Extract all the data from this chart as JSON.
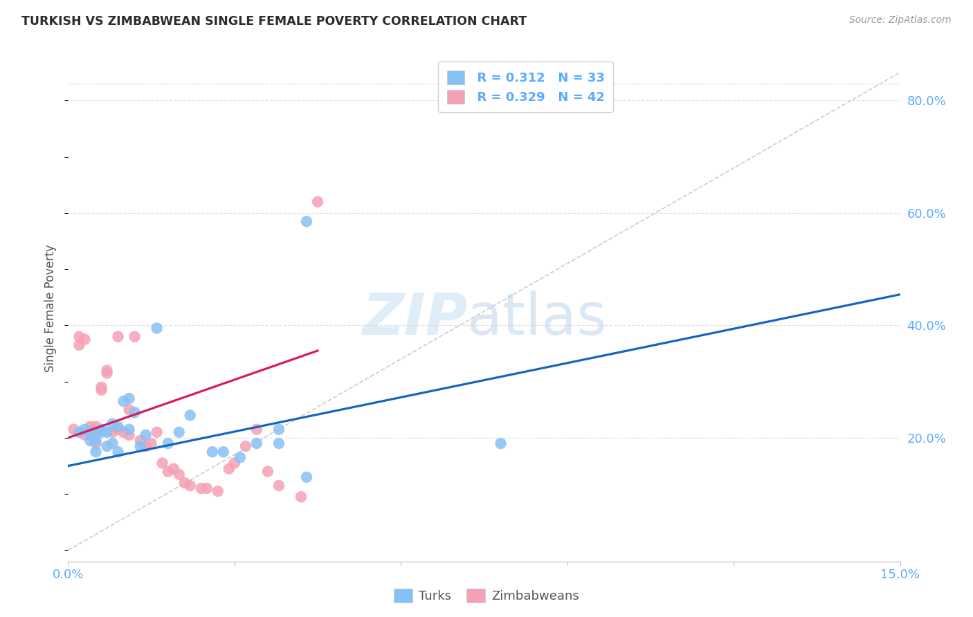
{
  "title": "TURKISH VS ZIMBABWEAN SINGLE FEMALE POVERTY CORRELATION CHART",
  "source": "Source: ZipAtlas.com",
  "ylabel": "Single Female Poverty",
  "xlim": [
    0.0,
    0.15
  ],
  "ylim": [
    -0.02,
    0.88
  ],
  "xticks": [
    0.0,
    0.03,
    0.06,
    0.09,
    0.12,
    0.15
  ],
  "xtick_labels": [
    "0.0%",
    "",
    "",
    "",
    "",
    "15.0%"
  ],
  "ytick_vals": [
    0.2,
    0.4,
    0.6,
    0.8
  ],
  "ytick_labels": [
    "20.0%",
    "40.0%",
    "60.0%",
    "80.0%"
  ],
  "turks_color": "#85c1f5",
  "zimbabweans_color": "#f5a0b5",
  "turks_line_color": "#1565c0",
  "zimbabweans_line_color": "#d81b60",
  "axis_text_color": "#5aabff",
  "title_color": "#2c2c2c",
  "grid_color": "#e0e0e0",
  "ref_line_color": "#cccccc",
  "turks_x": [
    0.002,
    0.003,
    0.004,
    0.004,
    0.005,
    0.005,
    0.006,
    0.006,
    0.007,
    0.007,
    0.008,
    0.008,
    0.009,
    0.009,
    0.01,
    0.011,
    0.011,
    0.012,
    0.013,
    0.014,
    0.016,
    0.018,
    0.02,
    0.022,
    0.026,
    0.028,
    0.031,
    0.034,
    0.038,
    0.038,
    0.043,
    0.078,
    0.043
  ],
  "turks_y": [
    0.21,
    0.215,
    0.195,
    0.21,
    0.195,
    0.175,
    0.215,
    0.21,
    0.21,
    0.185,
    0.225,
    0.19,
    0.22,
    0.175,
    0.265,
    0.27,
    0.215,
    0.245,
    0.185,
    0.205,
    0.395,
    0.19,
    0.21,
    0.24,
    0.175,
    0.175,
    0.165,
    0.19,
    0.215,
    0.19,
    0.13,
    0.19,
    0.585
  ],
  "zim_x": [
    0.001,
    0.002,
    0.002,
    0.003,
    0.003,
    0.004,
    0.004,
    0.005,
    0.005,
    0.005,
    0.006,
    0.006,
    0.007,
    0.007,
    0.008,
    0.009,
    0.009,
    0.01,
    0.011,
    0.011,
    0.012,
    0.013,
    0.014,
    0.015,
    0.016,
    0.017,
    0.018,
    0.019,
    0.02,
    0.021,
    0.022,
    0.024,
    0.025,
    0.027,
    0.029,
    0.03,
    0.032,
    0.034,
    0.036,
    0.038,
    0.042,
    0.045
  ],
  "zim_y": [
    0.215,
    0.38,
    0.365,
    0.375,
    0.205,
    0.205,
    0.22,
    0.21,
    0.22,
    0.19,
    0.29,
    0.285,
    0.315,
    0.32,
    0.21,
    0.215,
    0.38,
    0.21,
    0.205,
    0.25,
    0.38,
    0.195,
    0.185,
    0.19,
    0.21,
    0.155,
    0.14,
    0.145,
    0.135,
    0.12,
    0.115,
    0.11,
    0.11,
    0.105,
    0.145,
    0.155,
    0.185,
    0.215,
    0.14,
    0.115,
    0.095,
    0.62
  ],
  "turks_line_x0": 0.0,
  "turks_line_x1": 0.15,
  "turks_line_y0": 0.15,
  "turks_line_y1": 0.455,
  "zim_line_x0": 0.0,
  "zim_line_x1": 0.045,
  "zim_line_y0": 0.2,
  "zim_line_y1": 0.355,
  "ref_line_x0": 0.0,
  "ref_line_x1": 0.15,
  "ref_line_y0": 0.0,
  "ref_line_y1": 0.85
}
